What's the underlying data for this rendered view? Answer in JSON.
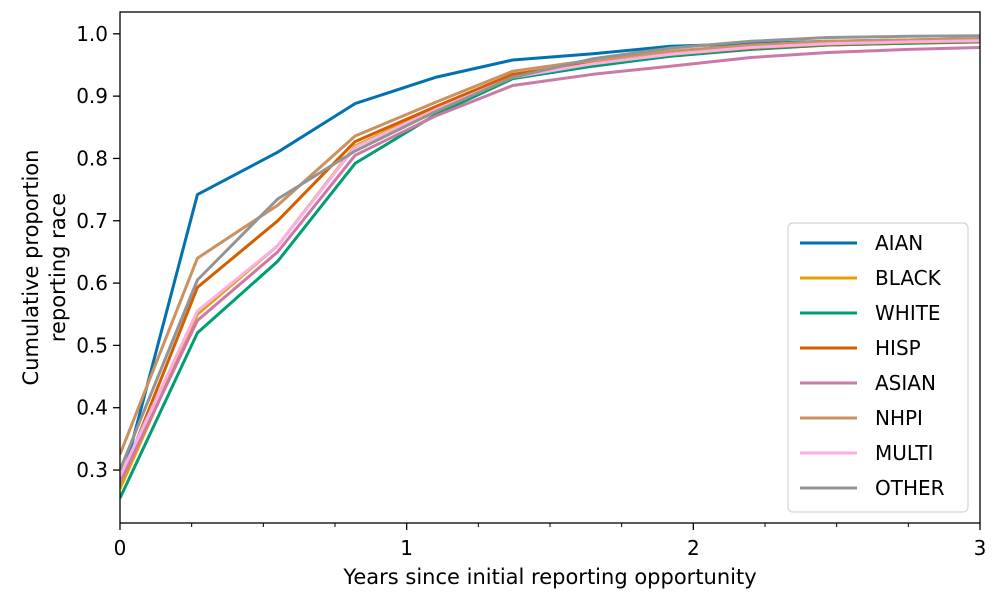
{
  "chart_data": {
    "type": "line",
    "title": "",
    "xlabel": "Years since initial reporting opportunity",
    "ylabel_lines": [
      "Cumulative proportion",
      "reporting race"
    ],
    "xlim": [
      0,
      3
    ],
    "ylim": [
      0.215,
      1.035
    ],
    "xticks": [
      0,
      1,
      2,
      3
    ],
    "xtick_labels": [
      "0",
      "1",
      "2",
      "3"
    ],
    "yticks": [
      0.3,
      0.4,
      0.5,
      0.6,
      0.7,
      0.8,
      0.9,
      1.0
    ],
    "ytick_labels": [
      "0.3",
      "0.4",
      "0.5",
      "0.6",
      "0.7",
      "0.8",
      "0.9",
      "1.0"
    ],
    "grid": false,
    "legend_position": "lower-right",
    "x": [
      0,
      0.27,
      0.55,
      0.82,
      1.1,
      1.37,
      1.65,
      1.92,
      2.2,
      2.47,
      2.75,
      3.0
    ],
    "series": [
      {
        "name": "AIAN",
        "color": "#0072b2",
        "values": [
          0.27,
          0.742,
          0.81,
          0.888,
          0.93,
          0.958,
          0.968,
          0.98,
          0.984,
          0.988,
          0.99,
          0.992
        ]
      },
      {
        "name": "BLACK",
        "color": "#e69f00",
        "values": [
          0.27,
          0.55,
          0.66,
          0.82,
          0.88,
          0.93,
          0.95,
          0.965,
          0.975,
          0.982,
          0.985,
          0.987
        ]
      },
      {
        "name": "WHITE",
        "color": "#009e73",
        "values": [
          0.255,
          0.52,
          0.635,
          0.792,
          0.87,
          0.928,
          0.948,
          0.964,
          0.975,
          0.982,
          0.985,
          0.987
        ]
      },
      {
        "name": "HISP",
        "color": "#d55e00",
        "values": [
          0.28,
          0.593,
          0.7,
          0.827,
          0.883,
          0.935,
          0.953,
          0.967,
          0.977,
          0.983,
          0.986,
          0.988
        ]
      },
      {
        "name": "ASIAN",
        "color": "#cc79a7",
        "values": [
          0.28,
          0.54,
          0.65,
          0.805,
          0.868,
          0.917,
          0.935,
          0.948,
          0.962,
          0.97,
          0.975,
          0.978
        ]
      },
      {
        "name": "NHPI",
        "color": "#ca9161",
        "values": [
          0.325,
          0.64,
          0.725,
          0.836,
          0.89,
          0.94,
          0.958,
          0.972,
          0.982,
          0.988,
          0.99,
          0.992
        ]
      },
      {
        "name": "MULTI",
        "color": "#fbafe4",
        "values": [
          0.29,
          0.555,
          0.66,
          0.818,
          0.878,
          0.93,
          0.952,
          0.967,
          0.978,
          0.984,
          0.987,
          0.989
        ]
      },
      {
        "name": "OTHER",
        "color": "#949494",
        "values": [
          0.3,
          0.605,
          0.735,
          0.812,
          0.875,
          0.93,
          0.96,
          0.977,
          0.988,
          0.994,
          0.996,
          0.997
        ]
      }
    ]
  }
}
